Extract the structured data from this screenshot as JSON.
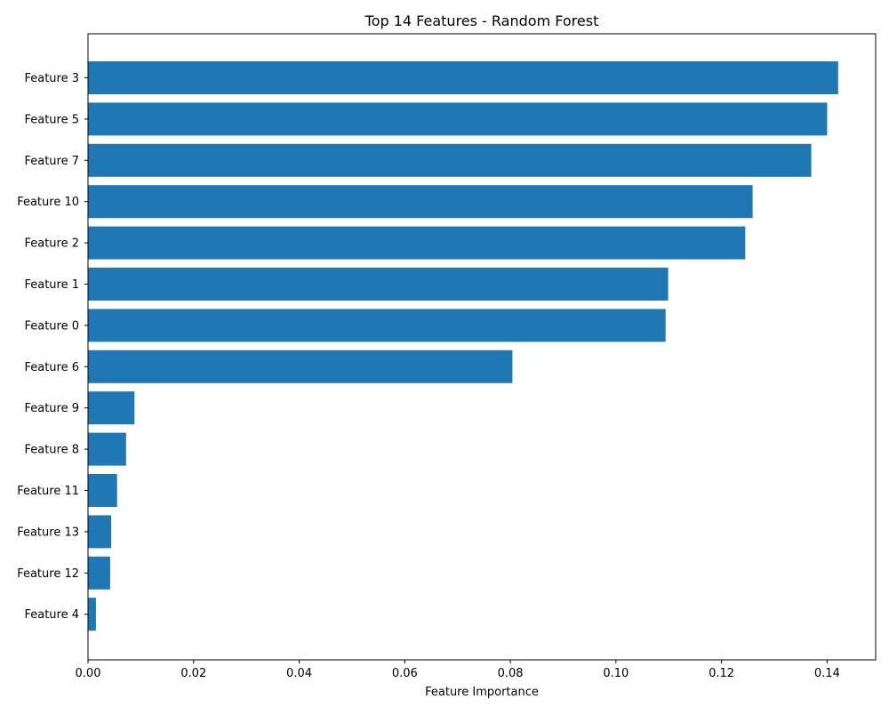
{
  "chart_data": {
    "type": "bar",
    "orientation": "horizontal",
    "title": "Top 14 Features - Random Forest",
    "xlabel": "Feature Importance",
    "ylabel": "",
    "categories": [
      "Feature 3",
      "Feature 5",
      "Feature 7",
      "Feature 10",
      "Feature 2",
      "Feature 1",
      "Feature 0",
      "Feature 6",
      "Feature 9",
      "Feature 8",
      "Feature 11",
      "Feature 13",
      "Feature 12",
      "Feature 4"
    ],
    "values": [
      0.1421,
      0.14,
      0.137,
      0.1259,
      0.1245,
      0.1099,
      0.1094,
      0.0804,
      0.0088,
      0.0072,
      0.0055,
      0.0044,
      0.0042,
      0.0015
    ],
    "xlim": [
      0.0,
      0.1492
    ],
    "xticks": [
      0.0,
      0.02,
      0.04,
      0.06,
      0.08,
      0.1,
      0.12,
      0.14
    ],
    "xtick_labels": [
      "0.00",
      "0.02",
      "0.04",
      "0.06",
      "0.08",
      "0.10",
      "0.12",
      "0.14"
    ],
    "bar_color": "#1f77b4",
    "grid": false,
    "legend": "none"
  }
}
